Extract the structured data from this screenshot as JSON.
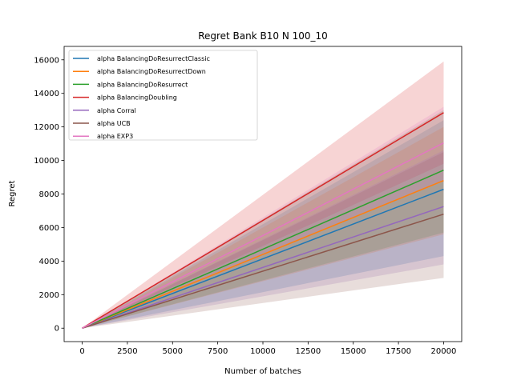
{
  "chart_data": {
    "type": "line",
    "title": "Regret Bank B10 N 100_10",
    "xlabel": "Number of batches",
    "ylabel": "Regret",
    "xlim": [
      -1000,
      21000
    ],
    "ylim": [
      -800,
      16800
    ],
    "xticks": [
      0,
      2500,
      5000,
      7500,
      10000,
      12500,
      15000,
      17500,
      20000
    ],
    "yticks": [
      0,
      2000,
      4000,
      6000,
      8000,
      10000,
      12000,
      14000,
      16000
    ],
    "grid": false,
    "legend_position": "top-left",
    "series": [
      {
        "name": "alpha BalancingDoResurrectClassic",
        "color": "#1f77b4",
        "x": [
          0,
          20000
        ],
        "y": [
          0,
          8280
        ],
        "lower": [
          0,
          4300
        ],
        "upper": [
          0,
          12400
        ]
      },
      {
        "name": "alpha BalancingDoResurrectDown",
        "color": "#ff7f0e",
        "x": [
          0,
          20000
        ],
        "y": [
          0,
          8800
        ],
        "lower": [
          0,
          5600
        ],
        "upper": [
          0,
          12000
        ]
      },
      {
        "name": "alpha BalancingDoResurrect",
        "color": "#2ca02c",
        "x": [
          0,
          20000
        ],
        "y": [
          0,
          9420
        ],
        "lower": [
          0,
          5700
        ],
        "upper": [
          0,
          13000
        ]
      },
      {
        "name": "alpha BalancingDoubling",
        "color": "#d62728",
        "x": [
          0,
          20000
        ],
        "y": [
          0,
          12850
        ],
        "lower": [
          0,
          9800
        ],
        "upper": [
          0,
          15900
        ]
      },
      {
        "name": "alpha Corral",
        "color": "#9467bd",
        "x": [
          0,
          20000
        ],
        "y": [
          0,
          7250
        ],
        "lower": [
          0,
          3800
        ],
        "upper": [
          0,
          10600
        ]
      },
      {
        "name": "alpha UCB",
        "color": "#8c564b",
        "x": [
          0,
          20000
        ],
        "y": [
          0,
          6800
        ],
        "lower": [
          0,
          3000
        ],
        "upper": [
          0,
          10500
        ]
      },
      {
        "name": "alpha EXP3",
        "color": "#e377c2",
        "x": [
          0,
          20000
        ],
        "y": [
          0,
          11050
        ],
        "lower": [
          0,
          8800
        ],
        "upper": [
          0,
          13200
        ]
      }
    ]
  }
}
